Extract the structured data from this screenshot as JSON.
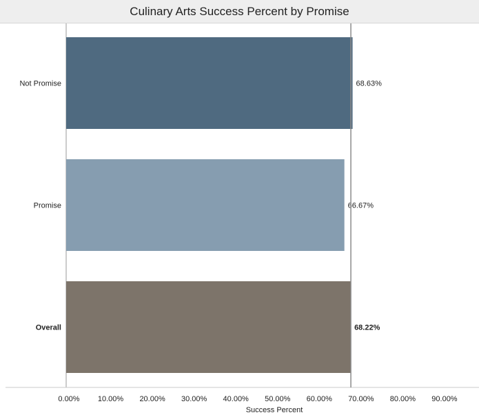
{
  "chart_data": {
    "type": "bar",
    "orientation": "horizontal",
    "title": "Culinary Arts Success Percent by Promise",
    "xlabel": "Success Percent",
    "ylabel": "",
    "categories": [
      "Not Promise",
      "Promise",
      "Overall"
    ],
    "values": [
      68.63,
      66.67,
      68.22
    ],
    "value_labels": [
      "68.63%",
      "66.67%",
      "68.22%"
    ],
    "bold_categories": [
      "Overall"
    ],
    "colors": [
      "#4f6a80",
      "#869db0",
      "#7d746a"
    ],
    "xlim": [
      0,
      90
    ],
    "xticks": [
      0,
      10,
      20,
      30,
      40,
      50,
      60,
      70,
      80,
      90
    ],
    "xtick_labels": [
      "0.00%",
      "10.00%",
      "20.00%",
      "30.00%",
      "40.00%",
      "50.00%",
      "60.00%",
      "70.00%",
      "80.00%",
      "90.00%"
    ],
    "reference_line": 68.22,
    "grid": false,
    "legend": "none"
  }
}
